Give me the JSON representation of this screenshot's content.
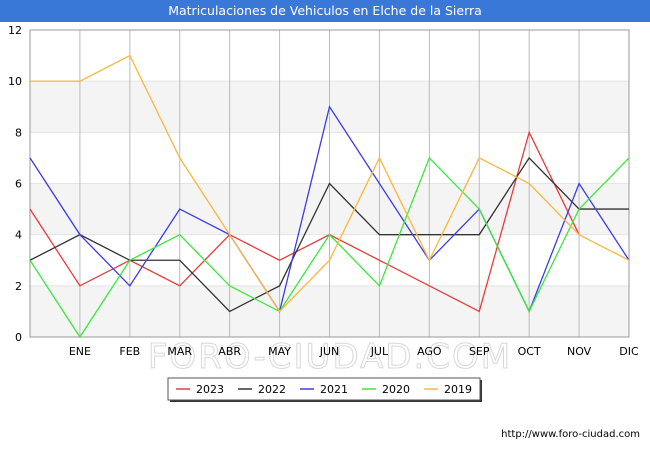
{
  "title": "Matriculaciones de Vehiculos en Elche de la Sierra",
  "watermark": "FORO-CIUDAD.COM",
  "footer_url": "http://www.foro-ciudad.com",
  "colors": {
    "title_bar": "#3a78d8",
    "band": "#f4f4f4",
    "grid": "#bbbbbb"
  },
  "chart_data": {
    "type": "line",
    "x": [
      "",
      "ENE",
      "FEB",
      "MAR",
      "ABR",
      "MAY",
      "JUN",
      "JUL",
      "AGO",
      "SEP",
      "OCT",
      "NOV",
      "DIC"
    ],
    "ylim": [
      0,
      12
    ],
    "yticks": [
      0,
      2,
      4,
      6,
      8,
      10,
      12
    ],
    "grid": true,
    "legend_position": "bottom-center",
    "series": [
      {
        "name": "2023",
        "color": "#e83c3c",
        "values": [
          5,
          2,
          3,
          2,
          4,
          3,
          4,
          3,
          2,
          1,
          8,
          4,
          null
        ]
      },
      {
        "name": "2022",
        "color": "#333333",
        "values": [
          3,
          4,
          3,
          3,
          1,
          2,
          6,
          4,
          4,
          4,
          7,
          5,
          5
        ]
      },
      {
        "name": "2021",
        "color": "#3c3ce8",
        "values": [
          7,
          4,
          2,
          5,
          4,
          1,
          9,
          6,
          3,
          5,
          1,
          6,
          3
        ]
      },
      {
        "name": "2020",
        "color": "#3ce83c",
        "values": [
          3,
          0,
          3,
          4,
          2,
          1,
          4,
          2,
          7,
          5,
          1,
          5,
          7
        ]
      },
      {
        "name": "2019",
        "color": "#f8b840",
        "values": [
          10,
          10,
          11,
          7,
          4,
          1,
          3,
          7,
          3,
          7,
          6,
          4,
          3
        ]
      }
    ]
  }
}
